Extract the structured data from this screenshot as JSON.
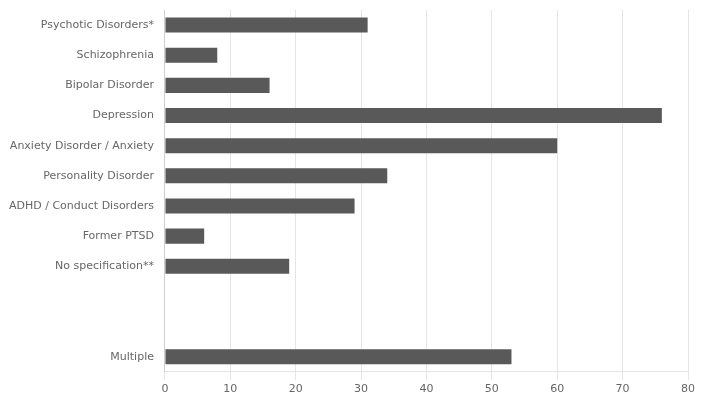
{
  "chart_data": {
    "type": "bar",
    "orientation": "horizontal",
    "categories": [
      "Psychotic Disorders*",
      "Schizophrenia",
      "Bipolar Disorder",
      "Depression",
      "Anxiety Disorder / Anxiety",
      "Personality Disorder",
      "ADHD / Conduct Disorders",
      "Former PTSD",
      "No specification**",
      null,
      null,
      "Multiple"
    ],
    "values": [
      31,
      8,
      16,
      76,
      60,
      34,
      29,
      6,
      19,
      0,
      0,
      53
    ],
    "color": "#595959",
    "xlim": [
      0,
      80
    ],
    "xticks": [
      0,
      10,
      20,
      30,
      40,
      50,
      60,
      70,
      80
    ],
    "grid": true
  }
}
